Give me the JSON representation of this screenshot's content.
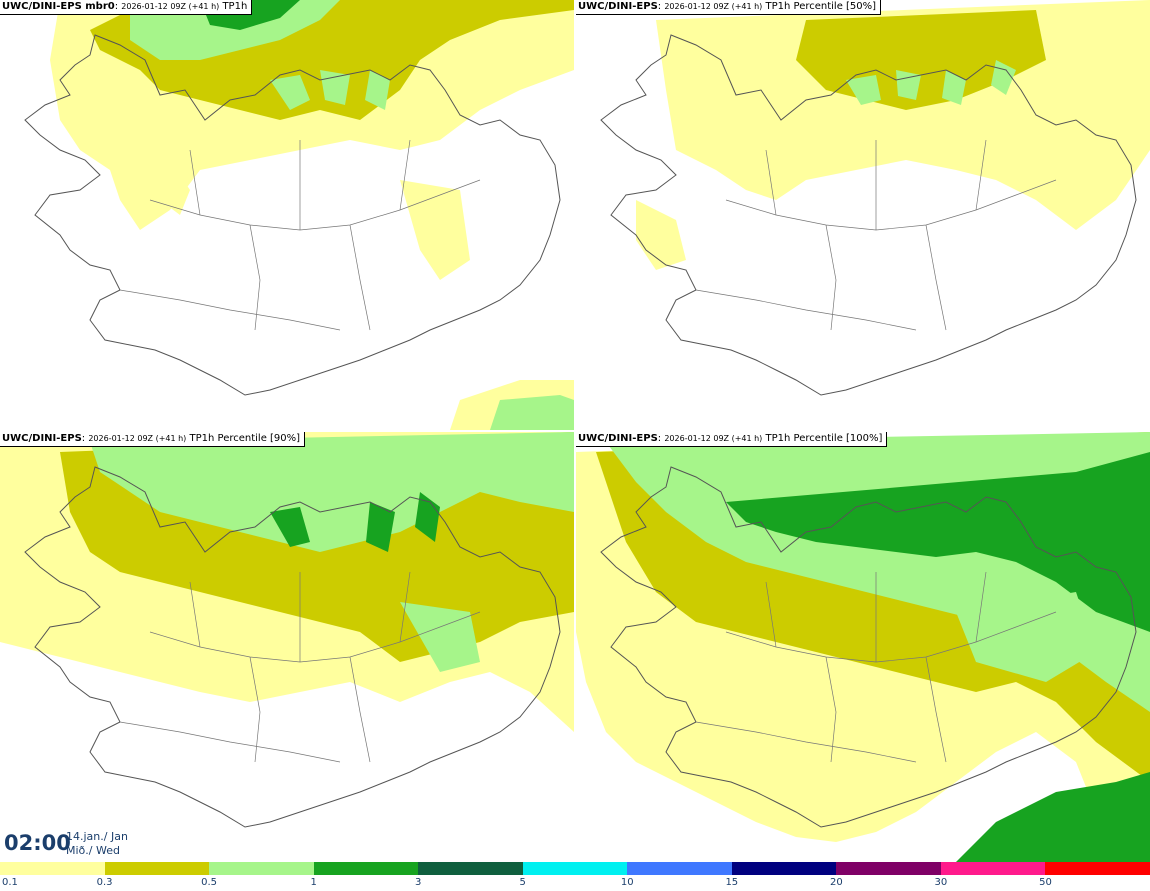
{
  "panels": [
    {
      "model": "UWC/DINI-EPS mbr0",
      "run": "2026-01-12 09Z (+41 h)",
      "field": "TP1h"
    },
    {
      "model": "UWC/DINI-EPS",
      "run": "2026-01-12 09Z (+41 h)",
      "field": "TP1h Percentile [50%]"
    },
    {
      "model": "UWC/DINI-EPS",
      "run": "2026-01-12 09Z (+41 h)",
      "field": "TP1h Percentile [90%]"
    },
    {
      "model": "UWC/DINI-EPS",
      "run": "2026-01-12 09Z (+41 h)",
      "field": "TP1h Percentile [100%]"
    }
  ],
  "valid_time": {
    "time": "02:00",
    "date_line1": "14.jan./ Jan",
    "date_line2": "Mið./ Wed"
  },
  "legend": {
    "ticks": [
      "0.1",
      "0.3",
      "0.5",
      "1",
      "3",
      "5",
      "10",
      "15",
      "20",
      "30",
      "50"
    ],
    "colors": [
      "#ffff9e",
      "#cccc00",
      "#a6f58a",
      "#17a320",
      "#0f5f3e",
      "#00f0f0",
      "#3f78ff",
      "#00007f",
      "#7f0066",
      "#ff1a8c",
      "#ff0000"
    ]
  },
  "colors": {
    "coast": "#555555",
    "text_blue": "#1b3e6b"
  }
}
